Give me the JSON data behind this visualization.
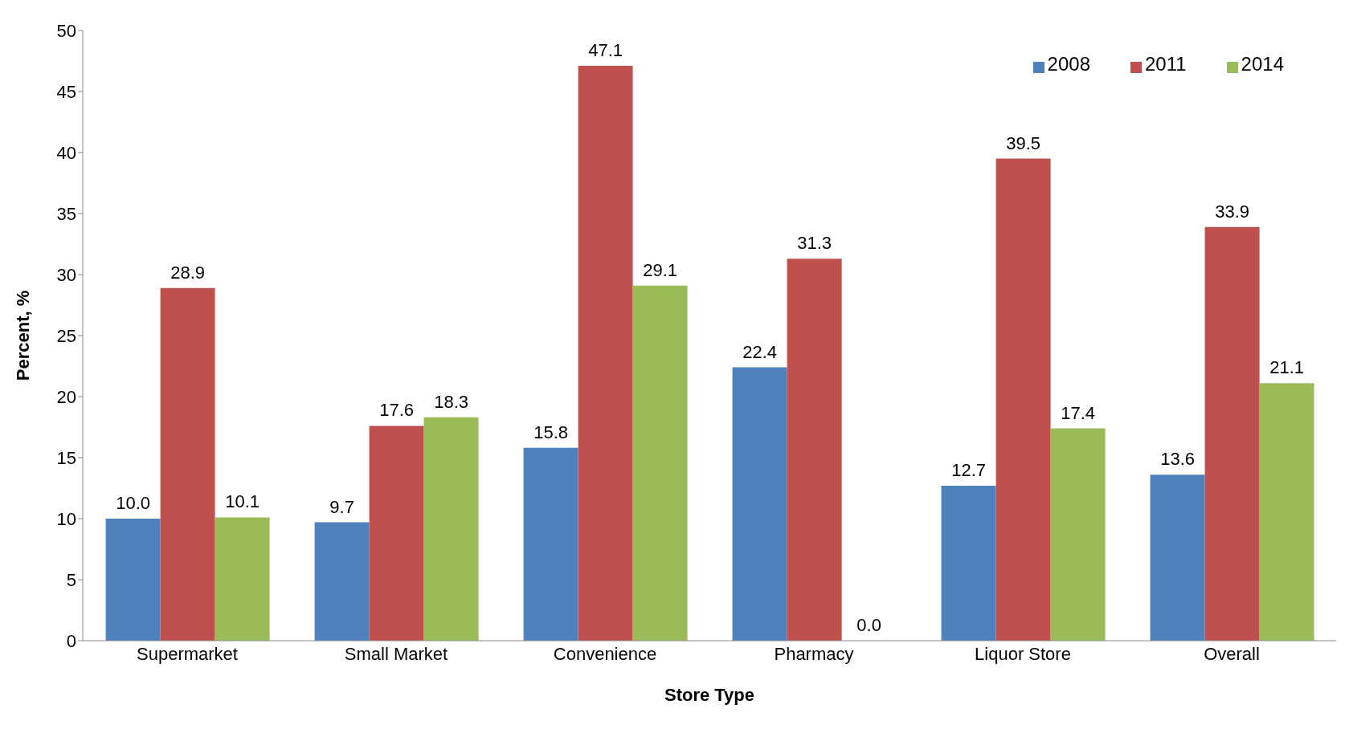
{
  "chart_data": {
    "type": "bar",
    "xlabel": "Store Type",
    "ylabel": "Percent, %",
    "categories": [
      "Supermarket",
      "Small Market",
      "Convenience",
      "Pharmacy",
      "Liquor Store",
      "Overall"
    ],
    "series": [
      {
        "name": "2008",
        "color": "#4f81bd",
        "values": [
          10.0,
          9.7,
          15.8,
          22.4,
          12.7,
          13.6
        ],
        "value_labels": [
          "10.0",
          "9.7",
          "15.8",
          "22.4",
          "12.7",
          "13.6"
        ]
      },
      {
        "name": "2011",
        "color": "#c0504d",
        "values": [
          28.9,
          17.6,
          47.1,
          31.3,
          39.5,
          33.9
        ],
        "value_labels": [
          "28.9",
          "17.6",
          "47.1",
          "31.3",
          "39.5",
          "33.9"
        ]
      },
      {
        "name": "2014",
        "color": "#9bbb59",
        "values": [
          10.1,
          18.3,
          29.1,
          0.0,
          17.4,
          21.1
        ],
        "value_labels": [
          "10.1",
          "18.3",
          "29.1",
          "0.0",
          "17.4",
          "21.1"
        ]
      }
    ],
    "ylim": [
      0,
      50
    ],
    "yticks": [
      0,
      5,
      10,
      15,
      20,
      25,
      30,
      35,
      40,
      45,
      50
    ],
    "grid": false,
    "legend": "top right"
  }
}
